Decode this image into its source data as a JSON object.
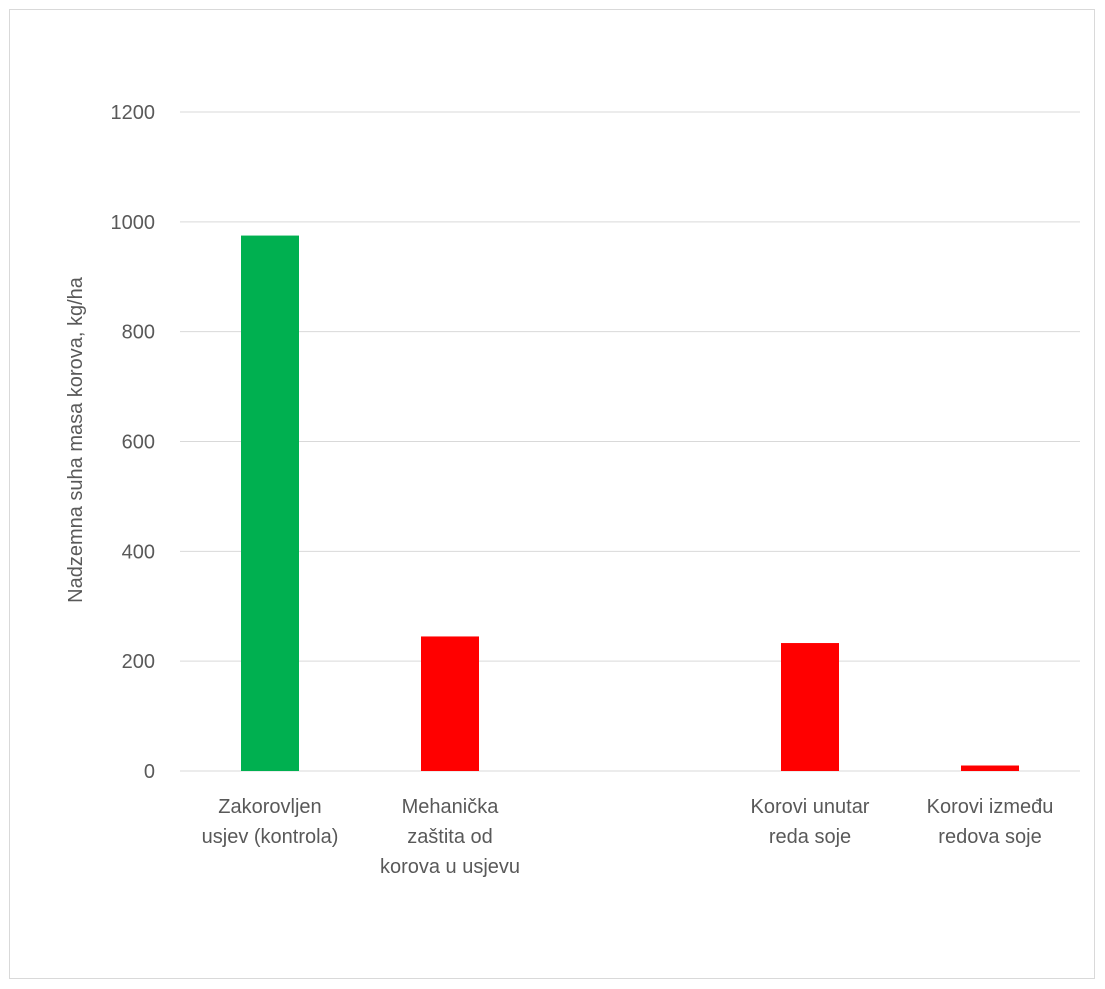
{
  "chart_data": {
    "type": "bar",
    "title": "",
    "xlabel": "",
    "ylabel": "Nadzemna suha masa korova, kg/ha",
    "ylim": [
      0,
      1200
    ],
    "yticks": [
      0,
      200,
      400,
      600,
      800,
      1000,
      1200
    ],
    "grid": true,
    "legend": "none",
    "categories": [
      [
        "Zakorovljen",
        "usjev (kontrola)"
      ],
      [
        "Mehanička",
        "zaštita od",
        "korova u usjevu"
      ],
      [
        ""
      ],
      [
        "Korovi unutar",
        "reda soje"
      ],
      [
        "Korovi između",
        "redova soje"
      ]
    ],
    "values": [
      975,
      245,
      null,
      233,
      10
    ],
    "colors": [
      "#00b050",
      "#ff0000",
      null,
      "#ff0000",
      "#ff0000"
    ]
  }
}
